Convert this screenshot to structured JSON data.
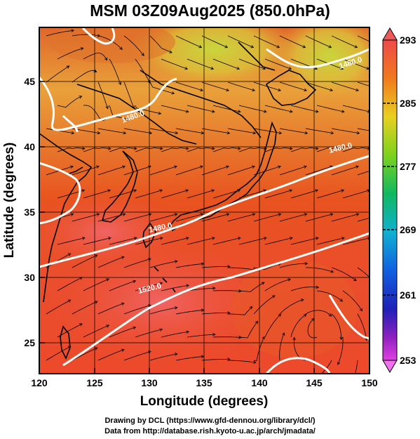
{
  "title": "MSM 03Z09Aug2025 (850.0hPa)",
  "xlabel": "Longitude (degrees)",
  "ylabel": "Latitude  (degrees)",
  "x_ticks": [
    "120",
    "125",
    "130",
    "135",
    "140",
    "145",
    "150"
  ],
  "y_ticks": [
    "25",
    "30",
    "35",
    "40",
    "45"
  ],
  "colorbar": {
    "ticks": [
      "293",
      "285",
      "277",
      "269",
      "261",
      "253"
    ],
    "min": 253,
    "max": 293
  },
  "contour_labels": [
    "1480.0",
    "1480.0",
    "1480.0",
    "1480.0",
    "1520.0"
  ],
  "credits": {
    "line1": "Drawing by DCL (https://www.gfd-dennou.org/library/dcl/)",
    "line2": "Data from http://database.rish.kyoto-u.ac.jp/arch/jmadata/"
  },
  "colors": {
    "warm": "#e8421f",
    "hot": "#ee5858",
    "mid": "#f2a33a",
    "cool": "#c8d83a"
  }
}
